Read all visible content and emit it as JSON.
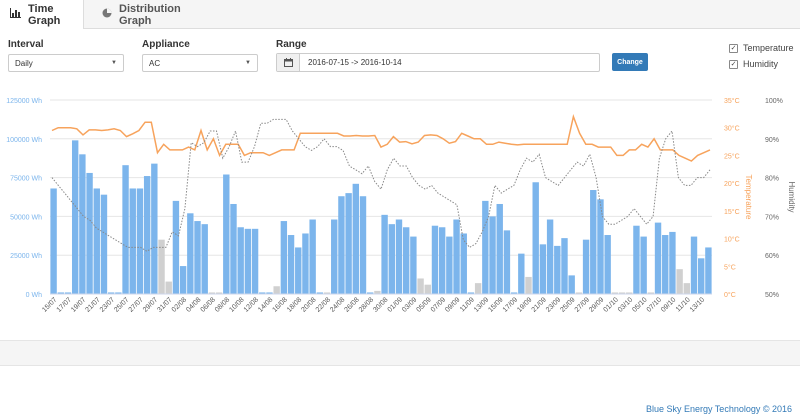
{
  "tabs": [
    {
      "label": "Time Graph",
      "icon": "bar-chart-icon",
      "active": true
    },
    {
      "label": "Distribution Graph",
      "icon": "pie-chart-icon",
      "active": false
    }
  ],
  "controls": {
    "interval_label": "Interval",
    "interval_value": "Daily",
    "appliance_label": "Appliance",
    "appliance_value": "AC",
    "range_label": "Range",
    "range_value": "2016-07-15 -> 2016-10-14",
    "change_button": "Change",
    "temperature_label": "Temperature",
    "humidity_label": "Humidity",
    "temperature_checked": true,
    "humidity_checked": true
  },
  "footer": {
    "copyright": "Blue Sky Energy Technology © 2016"
  },
  "colors": {
    "bar_blue": "#7cb5ec",
    "bar_grey": "#d0d0d0",
    "temperature": "#f7a35c",
    "humidity": "#888888",
    "accent": "#337ab7"
  },
  "chart_data": {
    "type": "bar",
    "y_energy": {
      "ticks": [
        "0 Wh",
        "25000 Wh",
        "50000 Wh",
        "75000 Wh",
        "100000 Wh",
        "125000 Wh"
      ],
      "range": [
        0,
        125000
      ]
    },
    "y_temperature": {
      "ticks": [
        "0°C",
        "5°C",
        "10°C",
        "15°C",
        "20°C",
        "25°C",
        "30°C",
        "35°C"
      ],
      "range": [
        0,
        35
      ],
      "title": "Temperature"
    },
    "y_humidity": {
      "ticks": [
        "50%",
        "60%",
        "70%",
        "80%",
        "90%",
        "100%"
      ],
      "range": [
        50,
        100
      ],
      "title": "Humidity"
    },
    "x_tick_labels": [
      "15/07",
      "17/07",
      "19/07",
      "21/07",
      "23/07",
      "25/07",
      "27/07",
      "29/07",
      "31/07",
      "02/08",
      "04/08",
      "06/08",
      "08/08",
      "10/08",
      "12/08",
      "14/08",
      "16/08",
      "18/08",
      "20/08",
      "22/08",
      "24/08",
      "26/08",
      "28/08",
      "30/08",
      "01/09",
      "03/09",
      "05/09",
      "07/09",
      "09/09",
      "11/09",
      "13/09",
      "15/09",
      "17/09",
      "19/09",
      "21/09",
      "23/09",
      "25/09",
      "27/09",
      "29/09",
      "01/10",
      "03/10",
      "05/10",
      "07/10",
      "09/10",
      "11/10",
      "13/10"
    ],
    "energy": [
      68000,
      1000,
      1000,
      99000,
      90000,
      78000,
      68000,
      64000,
      1000,
      1000,
      83000,
      68000,
      68000,
      76000,
      84000,
      35000,
      8000,
      60000,
      18000,
      52000,
      47000,
      45000,
      1000,
      1000,
      77000,
      58000,
      43000,
      42000,
      42000,
      1000,
      1000,
      5000,
      47000,
      38000,
      30000,
      39000,
      48000,
      1000,
      1000,
      48000,
      63000,
      65000,
      71000,
      63000,
      1000,
      2000,
      51000,
      45000,
      48000,
      43000,
      37000,
      10000,
      6000,
      44000,
      43000,
      37000,
      48000,
      39000,
      1000,
      7000,
      60000,
      50000,
      58000,
      41000,
      1000,
      26000,
      11000,
      72000,
      32000,
      48000,
      31000,
      36000,
      12000,
      1000,
      35000,
      67000,
      61000,
      38000,
      1000,
      1000,
      1000,
      44000,
      37000,
      1000,
      46000,
      38000,
      40000,
      16000,
      7000,
      37000,
      23000,
      30000
    ],
    "temperature": [
      29.5,
      30,
      30,
      30,
      29.8,
      28.7,
      29.6,
      29.6,
      29.5,
      29.6,
      29.8,
      29.5,
      28.4,
      28.9,
      29.5,
      31,
      31,
      25.5,
      27,
      26,
      26,
      26,
      26.5,
      26,
      29.5,
      26,
      28,
      25,
      27,
      27,
      27,
      25,
      25.5,
      25.5,
      25.5,
      25,
      25.5,
      26,
      26,
      26,
      29,
      29,
      29,
      29,
      29,
      29,
      29,
      28.5,
      28.5,
      28.6,
      28.5,
      28.5,
      28.6,
      26.5,
      27,
      28.4,
      27.4,
      27.5,
      27.1,
      27.4,
      28.6,
      28.7,
      28.6,
      28,
      27.2,
      27.5,
      29,
      28.5,
      28,
      28,
      27,
      27,
      27.4,
      27.2,
      27,
      26.9,
      27,
      27,
      27,
      27,
      27,
      27,
      27,
      27,
      32,
      29,
      27,
      27,
      26.5,
      26.5,
      26.5,
      25,
      25,
      26,
      26,
      27,
      26.5,
      28,
      26,
      26,
      26,
      25,
      24.5,
      24,
      25,
      25.5,
      26
    ],
    "humidity": [
      80,
      78,
      76,
      74,
      72,
      70,
      69,
      67,
      66,
      65,
      64,
      63,
      62,
      62,
      62,
      61,
      62,
      62,
      62,
      66,
      65,
      72,
      89,
      88,
      89,
      92,
      92,
      85,
      88,
      92,
      84,
      84,
      88,
      94,
      94,
      95,
      95,
      95,
      92,
      90,
      88,
      87,
      88,
      90,
      88,
      88,
      87,
      83,
      82,
      81,
      83,
      79,
      77,
      82,
      85,
      83,
      83,
      80,
      78,
      77,
      78,
      76,
      75,
      74,
      73,
      64,
      62,
      63,
      66,
      70,
      78,
      76,
      77,
      78,
      82,
      85,
      84,
      86,
      80,
      79,
      78,
      80,
      82,
      84,
      83,
      86,
      80,
      70,
      68,
      68,
      69,
      70,
      72,
      70,
      68,
      70,
      85,
      90,
      92,
      80,
      78,
      78,
      80,
      80,
      82
    ]
  }
}
